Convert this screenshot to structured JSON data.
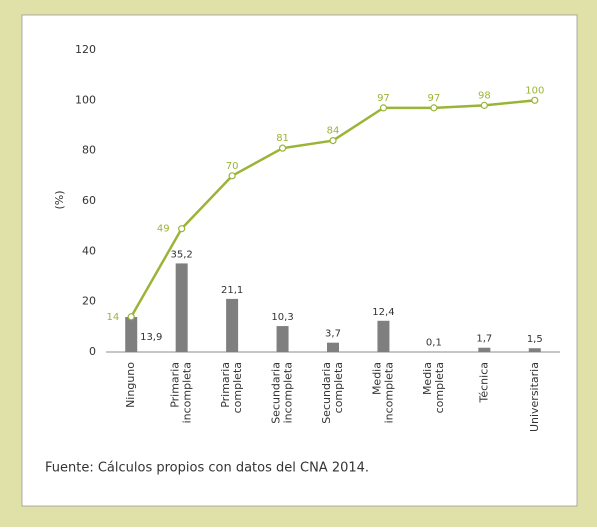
{
  "chart_data": {
    "type": "bar",
    "categories": [
      "Ninguno",
      "Primaria incompleta",
      "Primaria completa",
      "Secundaria incompleta",
      "Secundaria completa",
      "Media incompleta",
      "Media completa",
      "Técnica",
      "Universitaria"
    ],
    "series": [
      {
        "type": "bar",
        "color": "#7f7f7f",
        "values": [
          13.9,
          35.2,
          21.1,
          10.3,
          3.7,
          12.4,
          0.1,
          1.7,
          1.5
        ],
        "value_labels": [
          "13,9",
          "35,2",
          "21,1",
          "10,3",
          "3,7",
          "12,4",
          "0,1",
          "1,7",
          "1,5"
        ]
      },
      {
        "type": "line",
        "color": "#9ab437",
        "values": [
          14,
          49,
          70,
          81,
          84,
          97,
          97,
          98,
          100
        ]
      }
    ],
    "ylabel": "(%)",
    "ylim": [
      0,
      120
    ],
    "yticks": [
      0,
      20,
      40,
      60,
      80,
      100,
      120
    ],
    "grid": false,
    "note": "Fuente: Cálculos propios con datos del CNA 2014."
  }
}
